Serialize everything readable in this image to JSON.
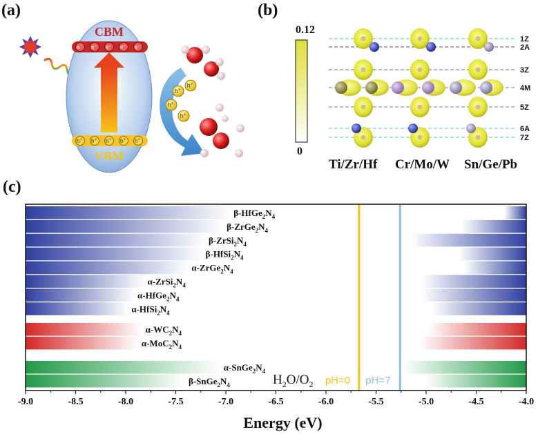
{
  "panels": {
    "a": "(a)",
    "b": "(b)",
    "c": "(c)"
  },
  "panel_a": {
    "cbm": "CBM",
    "vbm": "VBM",
    "electron": "e",
    "electron_sup": "−",
    "hole": "h",
    "hole_sup": "+"
  },
  "panel_b": {
    "colorbar_max": "0.12",
    "colorbar_min": "0",
    "colorbar_colors": [
      "#ffffff",
      "#dede3a"
    ],
    "layers": [
      "1Z",
      "2A",
      "3Z",
      "4M",
      "5Z",
      "6A",
      "7Z"
    ],
    "columns": [
      "Ti/Zr/Hf",
      "Cr/Mo/W",
      "Sn/Ge/Pb"
    ]
  },
  "chart_data": {
    "type": "bar",
    "orientation": "horizontal-range",
    "xlabel": "Energy (eV)",
    "xlim": [
      -9.0,
      -4.0
    ],
    "xticks": [
      "-9.0",
      "-8.5",
      "-8.0",
      "-7.5",
      "-7.0",
      "-6.5",
      "-6.0",
      "-5.5",
      "-5.0",
      "-4.5",
      "-4.0"
    ],
    "series": [
      {
        "color": "#2f3f9f",
        "items": [
          {
            "formula": "β-HfGe",
            "sub1": "2",
            "mid": "N",
            "sub2": "4",
            "vbm": -6.95,
            "cbm": -4.22
          },
          {
            "formula": "β-ZrGe",
            "sub1": "2",
            "mid": "N",
            "sub2": "4",
            "vbm": -7.02,
            "cbm": -4.64
          },
          {
            "formula": "β-ZrSi",
            "sub1": "2",
            "mid": "N",
            "sub2": "4",
            "vbm": -7.2,
            "cbm": -5.15
          },
          {
            "formula": "β-HfSi",
            "sub1": "2",
            "mid": "N",
            "sub2": "4",
            "vbm": -7.23,
            "cbm": -4.67
          },
          {
            "formula": "α-ZrGe",
            "sub1": "2",
            "mid": "N",
            "sub2": "4",
            "vbm": -7.37,
            "cbm": -4.62
          },
          {
            "formula": "α-ZrSi",
            "sub1": "2",
            "mid": "N",
            "sub2": "4",
            "vbm": -7.81,
            "cbm": -5.05
          },
          {
            "formula": "α-HfGe",
            "sub1": "2",
            "mid": "N",
            "sub2": "4",
            "vbm": -7.91,
            "cbm": -5.04
          },
          {
            "formula": "α-HfSi",
            "sub1": "2",
            "mid": "N",
            "sub2": "4",
            "vbm": -7.97,
            "cbm": -4.94
          }
        ]
      },
      {
        "color": "#d42828",
        "items": [
          {
            "formula": "α-WC",
            "sub1": "2",
            "mid": "N",
            "sub2": "4",
            "vbm": -7.83,
            "cbm": -4.98
          },
          {
            "formula": "α-MoC",
            "sub1": "2",
            "mid": "N",
            "sub2": "4",
            "vbm": -7.87,
            "cbm": -5.07
          }
        ]
      },
      {
        "color": "#229a48",
        "items": [
          {
            "formula": "α-SnGe",
            "sub1": "2",
            "mid": "N",
            "sub2": "4",
            "vbm": -7.05,
            "cbm": -5.23
          },
          {
            "formula": "β-SnGe",
            "sub1": "2",
            "mid": "N",
            "sub2": "4",
            "vbm": -7.4,
            "cbm": -5.01
          }
        ]
      }
    ],
    "reference_lines": [
      {
        "x": -5.67,
        "color": "#f2c215",
        "label": "pH=0"
      },
      {
        "x": -5.26,
        "color": "#8ebfe0",
        "label": "pH=7"
      }
    ],
    "annotation": {
      "base": "H",
      "sub1": "2",
      "mid": "O/O",
      "sub2": "2"
    }
  }
}
